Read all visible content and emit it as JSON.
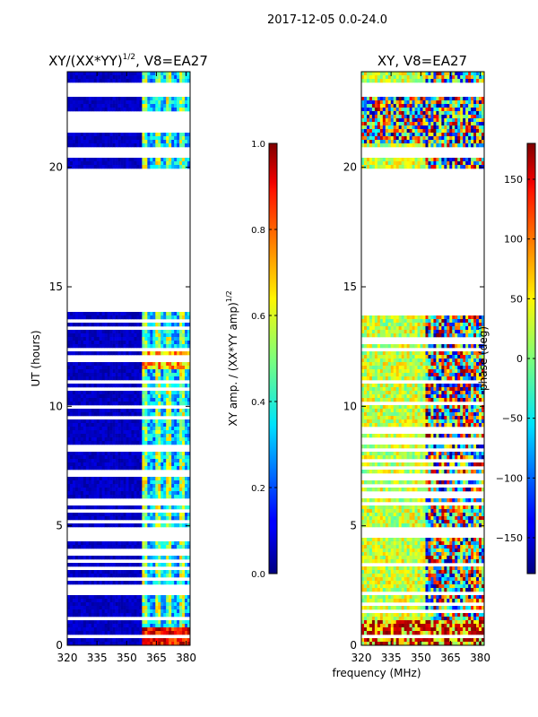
{
  "suptitle": "2017-12-05 0.0-24.0",
  "chart_data": [
    {
      "type": "heatmap",
      "title": "XY/(XX*YY)¹ᐟ², V8=EA27",
      "title_main": "XY/(XX*YY)",
      "title_exp": "1/2",
      "title_suffix": ", V8=EA27",
      "xlabel": "",
      "ylabel": "UT (hours)",
      "xlim": [
        320,
        382
      ],
      "ylim": [
        0,
        24
      ],
      "xticks": [
        320,
        335,
        350,
        365,
        380
      ],
      "yticks": [
        0,
        5,
        10,
        15,
        20
      ],
      "colorbar": {
        "label_main": "XY amp. / (XX*YY amp)",
        "label_exp": "1/2",
        "range": [
          0.0,
          1.0
        ],
        "ticks": [
          "0.0",
          "0.2",
          "0.4",
          "0.6",
          "0.8",
          "1.0"
        ],
        "tick_values": [
          0.0,
          0.2,
          0.4,
          0.6,
          0.8,
          1.0
        ],
        "colormap": "jet"
      },
      "data_gaps_hours": [
        [
          18.8,
          20.0
        ],
        [
          14.0,
          18.8
        ],
        [
          20.4,
          20.8
        ],
        [
          21.5,
          22.3
        ],
        [
          22.9,
          23.5
        ],
        [
          5.8,
          6.0
        ],
        [
          4.6,
          4.9
        ]
      ],
      "description_levels": {
        "low_band_value": 0.05,
        "high_band_value": 0.6
      }
    },
    {
      "type": "heatmap",
      "title": "XY, V8=EA27",
      "xlabel": "frequency (MHz)",
      "ylabel": "",
      "xlim": [
        320,
        382
      ],
      "ylim": [
        0,
        24
      ],
      "xticks": [
        320,
        335,
        350,
        365,
        380
      ],
      "yticks": [
        0,
        5,
        10,
        15,
        20
      ],
      "colorbar": {
        "label": "phase (deg)",
        "range": [
          -180,
          180
        ],
        "ticks": [
          "−150",
          "−100",
          "−50",
          "0",
          "50",
          "100",
          "150"
        ],
        "tick_values": [
          -150,
          -100,
          -50,
          0,
          50,
          100,
          150
        ],
        "colormap": "jet"
      },
      "data_gaps_hours": [
        [
          18.8,
          20.0
        ],
        [
          14.0,
          18.8
        ],
        [
          20.4,
          20.8
        ],
        [
          22.9,
          23.5
        ],
        [
          5.8,
          6.0
        ],
        [
          4.6,
          4.9
        ]
      ]
    }
  ],
  "colors": {
    "jet_dark_blue": "#00008f",
    "jet_blue": "#0000ff",
    "jet_cyan": "#00ffff",
    "jet_yellow": "#ffff00",
    "jet_red": "#ff0000",
    "jet_dark_red": "#7f0000"
  }
}
